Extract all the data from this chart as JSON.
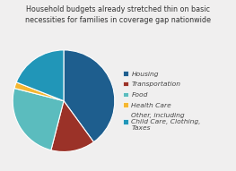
{
  "title": "Household budgets already stretched thin on basic\nnecessities for families in coverage gap nationwide",
  "slices": [
    {
      "label": "Housing",
      "value": 40,
      "color": "#1e5e8e"
    },
    {
      "label": "Transportation",
      "value": 14,
      "color": "#9b3228"
    },
    {
      "label": "Food",
      "value": 25,
      "color": "#5bbcbe"
    },
    {
      "label": "Health Care",
      "value": 2,
      "color": "#f5b731"
    },
    {
      "label": "Other, including\nChild Care, Clothing,\nTaxes",
      "value": 19,
      "color": "#2196b8"
    }
  ],
  "background_color": "#f0efef",
  "title_fontsize": 5.8,
  "legend_fontsize": 5.4,
  "startangle": 90
}
